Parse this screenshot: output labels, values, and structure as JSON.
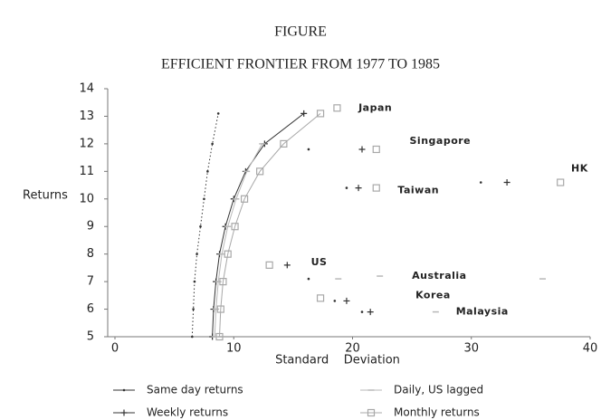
{
  "chart_data": {
    "type": "scatter",
    "title": "FIGURE",
    "subtitle": "EFFICIENT FRONTIER FROM 1977 TO 1985",
    "x_label": "Standard    Deviation",
    "y_label": "Returns",
    "xlim": [
      0,
      40
    ],
    "ylim": [
      5,
      14
    ],
    "xticks": [
      0,
      10,
      20,
      30,
      40
    ],
    "yticks": [
      5,
      6,
      7,
      8,
      9,
      10,
      11,
      12,
      13,
      14
    ],
    "series": [
      {
        "name": "Same day returns",
        "color": "#333333",
        "marker": "dot",
        "x": [
          6.5,
          6.6,
          6.7,
          6.9,
          7.2,
          7.5,
          7.8,
          8.2,
          8.7
        ],
        "values": [
          5,
          6,
          7,
          8,
          9,
          10,
          11,
          12,
          13.1
        ],
        "points_x": [
          16.3,
          30.8,
          19.5,
          16.3,
          18.5,
          20.8
        ],
        "points_y": [
          11.8,
          10.6,
          10.4,
          7.1,
          6.3,
          5.9
        ]
      },
      {
        "name": "Weekly returns",
        "color": "#333333",
        "marker": "plus",
        "x": [
          8.2,
          8.3,
          8.5,
          8.8,
          9.3,
          10.0,
          11.0,
          12.6,
          15.9
        ],
        "values": [
          5,
          6,
          7,
          8,
          9,
          10,
          11,
          12,
          13.1
        ],
        "points_x": [
          20.8,
          33,
          20.5,
          14.5,
          19.5,
          21.5
        ],
        "points_y": [
          11.8,
          10.6,
          10.4,
          7.6,
          6.3,
          5.9
        ]
      },
      {
        "name": "Daily, US lagged",
        "color": "#b8b8b8",
        "marker": "dash",
        "x": [
          8.4,
          8.5,
          8.7,
          9.0,
          9.5,
          10.2,
          11.1,
          12.4
        ],
        "values": [
          5,
          6,
          7,
          8,
          9,
          10,
          11,
          12
        ],
        "points_x": [
          18.8,
          22.3,
          27,
          36
        ],
        "points_y": [
          7.1,
          7.2,
          5.9,
          7.1
        ]
      },
      {
        "name": "Monthly returns",
        "color": "#a8a8a8",
        "marker": "square",
        "x": [
          8.8,
          8.9,
          9.1,
          9.5,
          10.1,
          10.9,
          12.2,
          14.2,
          17.3
        ],
        "values": [
          5,
          6,
          7,
          8,
          9,
          10,
          11,
          12,
          13.1
        ],
        "points_x": [
          18.7,
          22,
          37.5,
          22,
          13,
          17.3
        ],
        "points_y": [
          13.3,
          11.8,
          10.6,
          10.4,
          7.6,
          6.4
        ]
      }
    ],
    "annotations": [
      {
        "text": "Japan",
        "x": 20.5,
        "y": 13.3
      },
      {
        "text": "Singapore",
        "x": 24.8,
        "y": 12.1
      },
      {
        "text": "HK",
        "x": 38.4,
        "y": 11.1
      },
      {
        "text": "Taiwan",
        "x": 23.8,
        "y": 10.3
      },
      {
        "text": "US",
        "x": 16.5,
        "y": 7.7
      },
      {
        "text": "Australia",
        "x": 25,
        "y": 7.2
      },
      {
        "text": "Korea",
        "x": 25.3,
        "y": 6.5
      },
      {
        "text": "Malaysia",
        "x": 28.7,
        "y": 5.9
      }
    ]
  }
}
